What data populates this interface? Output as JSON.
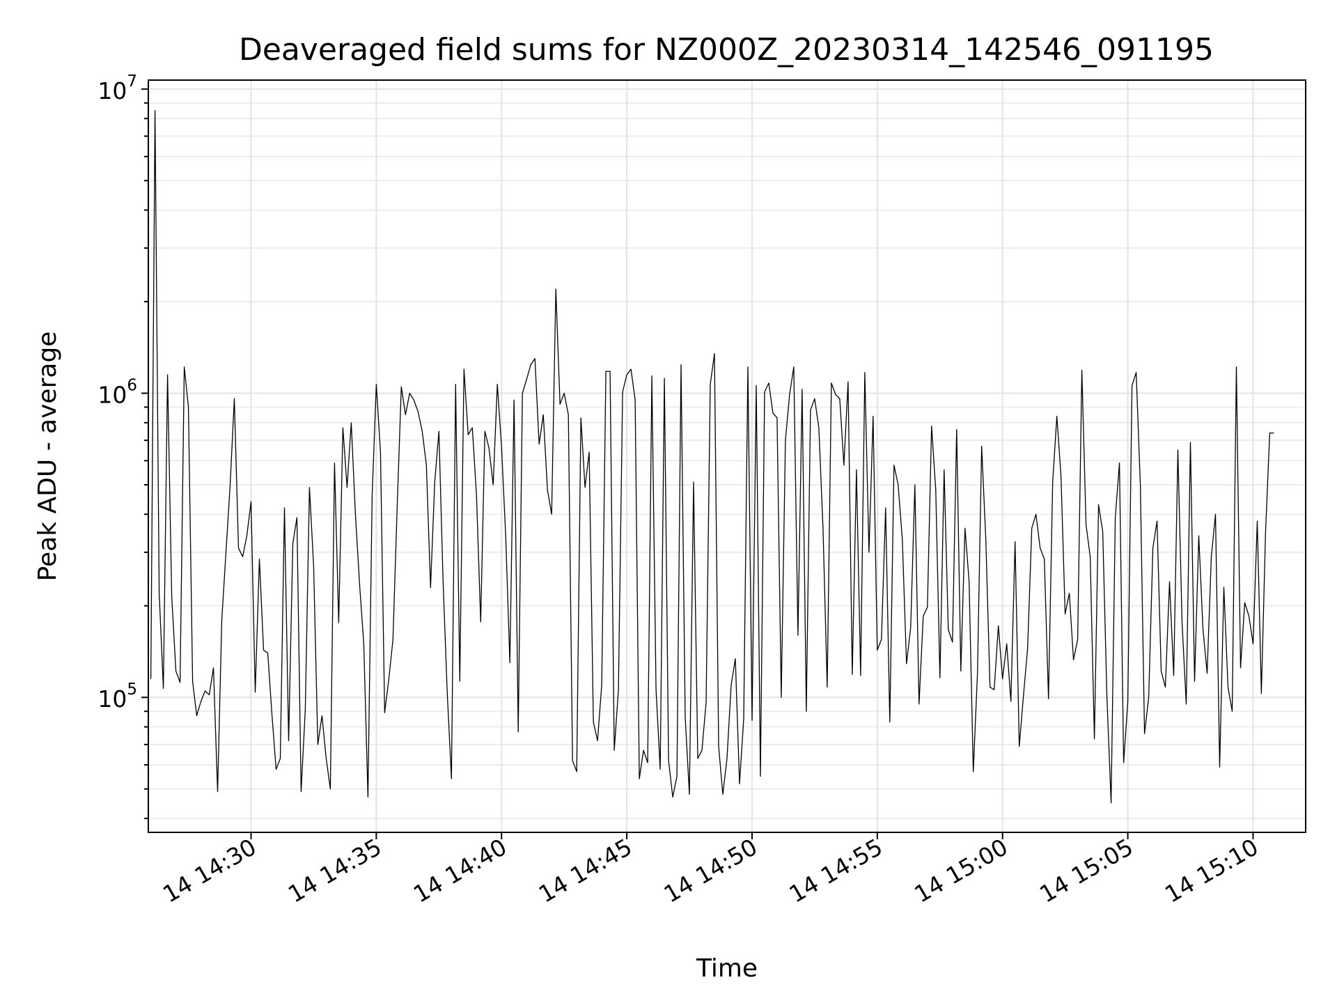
{
  "chart_data": {
    "type": "line",
    "title": "Deaveraged field sums for NZ000Z_20230314_142546_091195",
    "xlabel": "Time",
    "ylabel": "Peak ADU - average",
    "yscale": "log",
    "ylim": [
      36000,
      10700000
    ],
    "xlim": [
      "2023-03-14 14:25:54",
      "2023-03-14 15:12:06"
    ],
    "grid": "major and minor",
    "legend": "none",
    "line_color": "#000000",
    "x_ticks": [
      {
        "label": "14 14:30",
        "time": "2023-03-14 14:30:00"
      },
      {
        "label": "14 14:35",
        "time": "2023-03-14 14:35:00"
      },
      {
        "label": "14 14:40",
        "time": "2023-03-14 14:40:00"
      },
      {
        "label": "14 14:45",
        "time": "2023-03-14 14:45:00"
      },
      {
        "label": "14 14:50",
        "time": "2023-03-14 14:50:00"
      },
      {
        "label": "14 14:55",
        "time": "2023-03-14 14:55:00"
      },
      {
        "label": "14 15:00",
        "time": "2023-03-14 15:00:00"
      },
      {
        "label": "14 15:05",
        "time": "2023-03-14 15:05:00"
      },
      {
        "label": "14 15:10",
        "time": "2023-03-14 15:10:00"
      }
    ],
    "y_ticks": [
      {
        "base": "10",
        "exp": "5",
        "value": 100000
      },
      {
        "base": "10",
        "exp": "6",
        "value": 1000000
      },
      {
        "base": "10",
        "exp": "7",
        "value": 10000000
      }
    ],
    "series": [
      {
        "x_start": "2023-03-14 14:26:00",
        "x_step_seconds": 10,
        "y": [
          115000,
          8500000,
          220000,
          107000,
          1150000,
          215000,
          122000,
          112000,
          1220000,
          900000,
          113000,
          87000,
          97000,
          105000,
          102000,
          125000,
          49000,
          180000,
          300000,
          500000,
          960000,
          310000,
          290000,
          340000,
          440000,
          104000,
          285000,
          143000,
          140000,
          88000,
          58000,
          63000,
          420000,
          72000,
          320000,
          390000,
          49000,
          91000,
          490000,
          270000,
          70000,
          87000,
          63000,
          50000,
          590000,
          176000,
          770000,
          490000,
          800000,
          400000,
          235000,
          150000,
          47000,
          460000,
          1070000,
          640000,
          89000,
          115000,
          155000,
          420000,
          1050000,
          850000,
          1000000,
          950000,
          870000,
          750000,
          580000,
          230000,
          510000,
          750000,
          240000,
          103000,
          54000,
          1070000,
          113000,
          1200000,
          730000,
          770000,
          460000,
          177000,
          750000,
          660000,
          500000,
          1070000,
          670000,
          340000,
          130000,
          950000,
          77000,
          1000000,
          1110000,
          1240000,
          1300000,
          680000,
          850000,
          480000,
          400000,
          2200000,
          920000,
          1000000,
          850000,
          62000,
          57000,
          830000,
          490000,
          640000,
          83000,
          72000,
          110000,
          1180000,
          1180000,
          67000,
          106000,
          1010000,
          1150000,
          1200000,
          950000,
          54000,
          67000,
          61000,
          1140000,
          106000,
          58000,
          1120000,
          62000,
          47000,
          55000,
          1240000,
          86000,
          48000,
          510000,
          63000,
          67000,
          96000,
          1070000,
          1350000,
          69000,
          48000,
          63000,
          110000,
          134000,
          52000,
          85000,
          1220000,
          84000,
          1060000,
          55000,
          1010000,
          1080000,
          860000,
          830000,
          100000,
          700000,
          990000,
          1220000,
          160000,
          1030000,
          90000,
          880000,
          960000,
          770000,
          360000,
          108000,
          1080000,
          990000,
          960000,
          580000,
          1090000,
          119000,
          560000,
          118000,
          1170000,
          300000,
          840000,
          143000,
          155000,
          420000,
          83000,
          580000,
          500000,
          330000,
          129000,
          170000,
          500000,
          95000,
          185000,
          198000,
          780000,
          480000,
          116000,
          560000,
          167000,
          152000,
          760000,
          122000,
          360000,
          240000,
          57000,
          120000,
          670000,
          330000,
          108000,
          106000,
          172000,
          115000,
          150000,
          97000,
          325000,
          69000,
          101000,
          145000,
          360000,
          400000,
          310000,
          285000,
          99000,
          510000,
          840000,
          530000,
          188000,
          220000,
          133000,
          155000,
          1190000,
          370000,
          290000,
          73000,
          430000,
          350000,
          100000,
          45000,
          390000,
          590000,
          61000,
          97000,
          1060000,
          1170000,
          500000,
          76000,
          100000,
          310000,
          380000,
          122000,
          108000,
          240000,
          118000,
          650000,
          176000,
          95000,
          690000,
          113000,
          340000,
          168000,
          120000,
          290000,
          400000,
          59000,
          230000,
          108000,
          90000,
          1220000,
          125000,
          205000,
          185000,
          150000,
          380000,
          103000,
          350000,
          740000,
          740000
        ]
      }
    ]
  }
}
